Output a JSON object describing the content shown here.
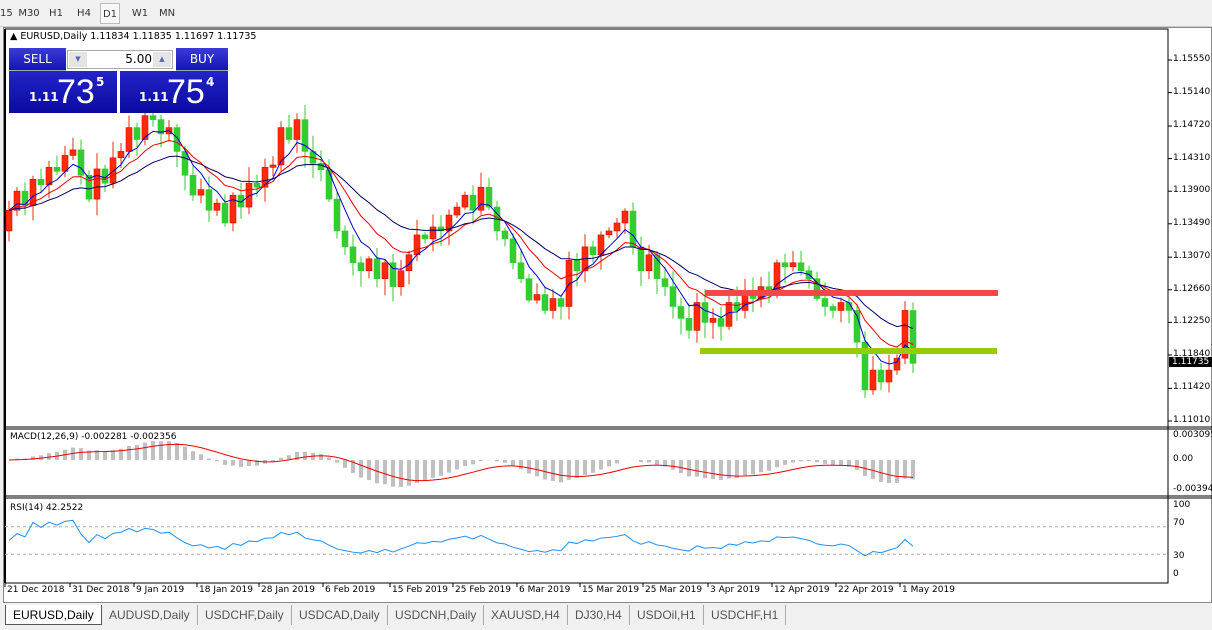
{
  "toolbar": {
    "timeframes": [
      "15",
      "M30",
      "H1",
      "H4",
      "D1",
      "W1",
      "MN"
    ],
    "active": "D1"
  },
  "chart": {
    "header": "EURUSD,Daily  1.11834 1.11835 1.11697 1.11735",
    "trade_panel": {
      "sell_label": "SELL",
      "buy_label": "BUY",
      "lot": "5.00",
      "sell_prefix": "1.11",
      "sell_big": "73",
      "sell_sup": "5",
      "buy_prefix": "1.11",
      "buy_big": "75",
      "buy_sup": "4"
    },
    "price_axis": [
      "1.15550",
      "1.15140",
      "1.14720",
      "1.14310",
      "1.13900",
      "1.13490",
      "1.13070",
      "1.12660",
      "1.12250",
      "1.11840",
      "1.11420",
      "1.11010"
    ],
    "current_price": "1.11735",
    "time_axis": [
      "21 Dec 2018",
      "31 Dec 2018",
      "9 Jan 2019",
      "18 Jan 2019",
      "28 Jan 2019",
      "6 Feb 2019",
      "15 Feb 2019",
      "25 Feb 2019",
      "6 Mar 2019",
      "15 Mar 2019",
      "25 Mar 2019",
      "3 Apr 2019",
      "12 Apr 2019",
      "22 Apr 2019",
      "1 May 2019"
    ],
    "first_open": 1.134,
    "closes": [
      1.1366,
      1.139,
      1.1372,
      1.1405,
      1.1398,
      1.142,
      1.1415,
      1.1435,
      1.1442,
      1.141,
      1.138,
      1.1418,
      1.14,
      1.1432,
      1.144,
      1.147,
      1.1455,
      1.1485,
      1.148,
      1.1462,
      1.147,
      1.144,
      1.141,
      1.1385,
      1.1392,
      1.1366,
      1.1375,
      1.135,
      1.1385,
      1.137,
      1.14,
      1.1395,
      1.142,
      1.1423,
      1.147,
      1.1455,
      1.148,
      1.144,
      1.1425,
      1.1417,
      1.138,
      1.134,
      1.132,
      1.13,
      1.129,
      1.1305,
      1.128,
      1.13,
      1.127,
      1.129,
      1.131,
      1.1335,
      1.133,
      1.1345,
      1.134,
      1.136,
      1.137,
      1.1385,
      1.1366,
      1.1395,
      1.137,
      1.134,
      1.133,
      1.13,
      1.128,
      1.1253,
      1.126,
      1.124,
      1.1255,
      1.1245,
      1.1303,
      1.129,
      1.132,
      1.131,
      1.1335,
      1.134,
      1.135,
      1.1365,
      1.132,
      1.129,
      1.131,
      1.128,
      1.127,
      1.1245,
      1.123,
      1.1215,
      1.125,
      1.1225,
      1.123,
      1.122,
      1.125,
      1.124,
      1.1265,
      1.1255,
      1.127,
      1.1265,
      1.13,
      1.1295,
      1.13,
      1.129,
      1.128,
      1.1255,
      1.1245,
      1.124,
      1.125,
      1.124,
      1.12,
      1.114,
      1.1165,
      1.115,
      1.1165,
      1.118,
      1.124,
      1.11735
    ],
    "bull_color": "#ff2a0a",
    "bear_color": "#33cc33",
    "levels": [
      {
        "price": 1.1262,
        "color": "#f44848"
      },
      {
        "price": 1.1189,
        "color": "#99cc00"
      }
    ],
    "macd": {
      "label": "MACD(12,26,9) -0.002281 -0.002356",
      "axis": [
        "0.003095",
        "0.00",
        "-0.003947"
      ]
    },
    "rsi": {
      "label": "RSI(14) 42.2522",
      "axis": [
        "100",
        "70",
        "30",
        "0"
      ]
    }
  },
  "tabs": [
    "EURUSD,Daily",
    "AUDUSD,Daily",
    "USDCHF,Daily",
    "USDCAD,Daily",
    "USDCNH,Daily",
    "XAUUSD,H4",
    "DJ30,H4",
    "USDOil,H1",
    "USDCHF,H1"
  ],
  "active_tab": "EURUSD,Daily"
}
